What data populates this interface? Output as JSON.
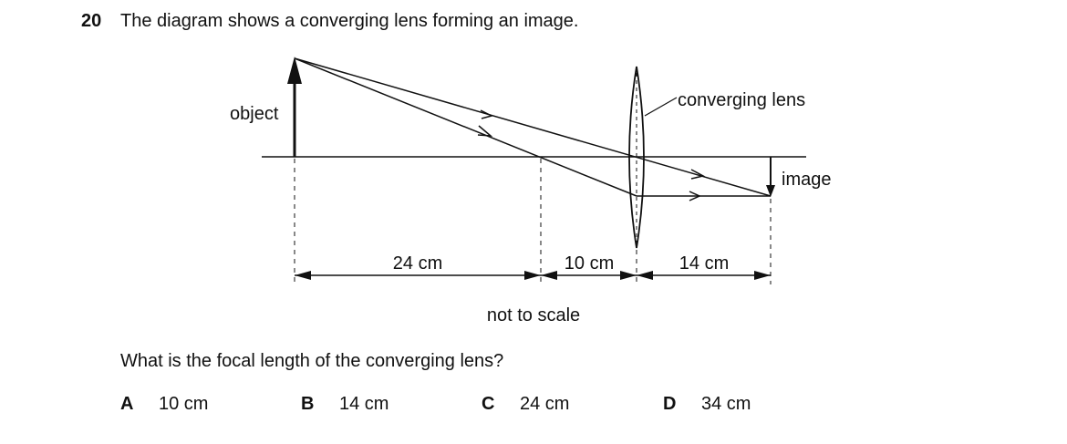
{
  "question": {
    "number": "20",
    "stem": "The diagram shows a converging lens forming an image.",
    "prompt": "What is the focal length of the converging lens?"
  },
  "diagram": {
    "object_label": "object",
    "lens_label": "converging lens",
    "image_label": "image",
    "dist_object_focus": "24 cm",
    "dist_focus_lens": "10 cm",
    "dist_lens_image": "14 cm",
    "scale_note": "not to scale"
  },
  "options": [
    {
      "letter": "A",
      "text": "10 cm"
    },
    {
      "letter": "B",
      "text": "14 cm"
    },
    {
      "letter": "C",
      "text": "24 cm"
    },
    {
      "letter": "D",
      "text": "34 cm"
    }
  ]
}
